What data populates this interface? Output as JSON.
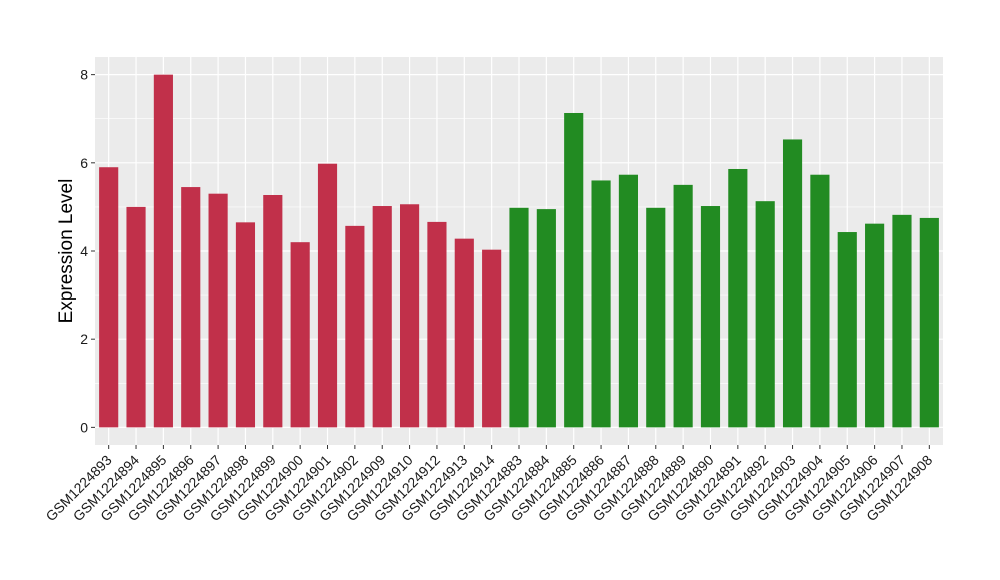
{
  "chart_data": {
    "type": "bar",
    "title": "",
    "xlabel": "",
    "ylabel": "Expression Level",
    "ylim": [
      -0.4,
      8.4
    ],
    "yticks": [
      0,
      2,
      4,
      6,
      8
    ],
    "grid": true,
    "legend": "none",
    "background_color": "#ebebeb",
    "grid_color": "#ffffff",
    "categories": [
      "GSM1224893",
      "GSM1224894",
      "GSM1224895",
      "GSM1224896",
      "GSM1224897",
      "GSM1224898",
      "GSM1224899",
      "GSM1224900",
      "GSM1224901",
      "GSM1224902",
      "GSM1224909",
      "GSM1224910",
      "GSM1224912",
      "GSM1224913",
      "GSM1224914",
      "GSM1224883",
      "GSM1224884",
      "GSM1224885",
      "GSM1224886",
      "GSM1224887",
      "GSM1224888",
      "GSM1224889",
      "GSM1224890",
      "GSM1224891",
      "GSM1224892",
      "GSM1224903",
      "GSM1224904",
      "GSM1224905",
      "GSM1224906",
      "GSM1224907",
      "GSM1224908"
    ],
    "values": [
      5.9,
      5.0,
      8.0,
      5.45,
      5.3,
      4.65,
      5.27,
      4.2,
      5.98,
      4.57,
      5.02,
      5.06,
      4.66,
      4.28,
      4.03,
      4.98,
      4.95,
      7.13,
      5.6,
      5.73,
      4.98,
      5.5,
      5.02,
      5.86,
      5.13,
      6.53,
      5.73,
      4.43,
      4.62,
      4.82,
      4.75
    ],
    "bar_colors": [
      "#c1304a",
      "#c1304a",
      "#c1304a",
      "#c1304a",
      "#c1304a",
      "#c1304a",
      "#c1304a",
      "#c1304a",
      "#c1304a",
      "#c1304a",
      "#c1304a",
      "#c1304a",
      "#c1304a",
      "#c1304a",
      "#c1304a",
      "#228b22",
      "#228b22",
      "#228b22",
      "#228b22",
      "#228b22",
      "#228b22",
      "#228b22",
      "#228b22",
      "#228b22",
      "#228b22",
      "#228b22",
      "#228b22",
      "#228b22",
      "#228b22",
      "#228b22",
      "#228b22"
    ]
  }
}
